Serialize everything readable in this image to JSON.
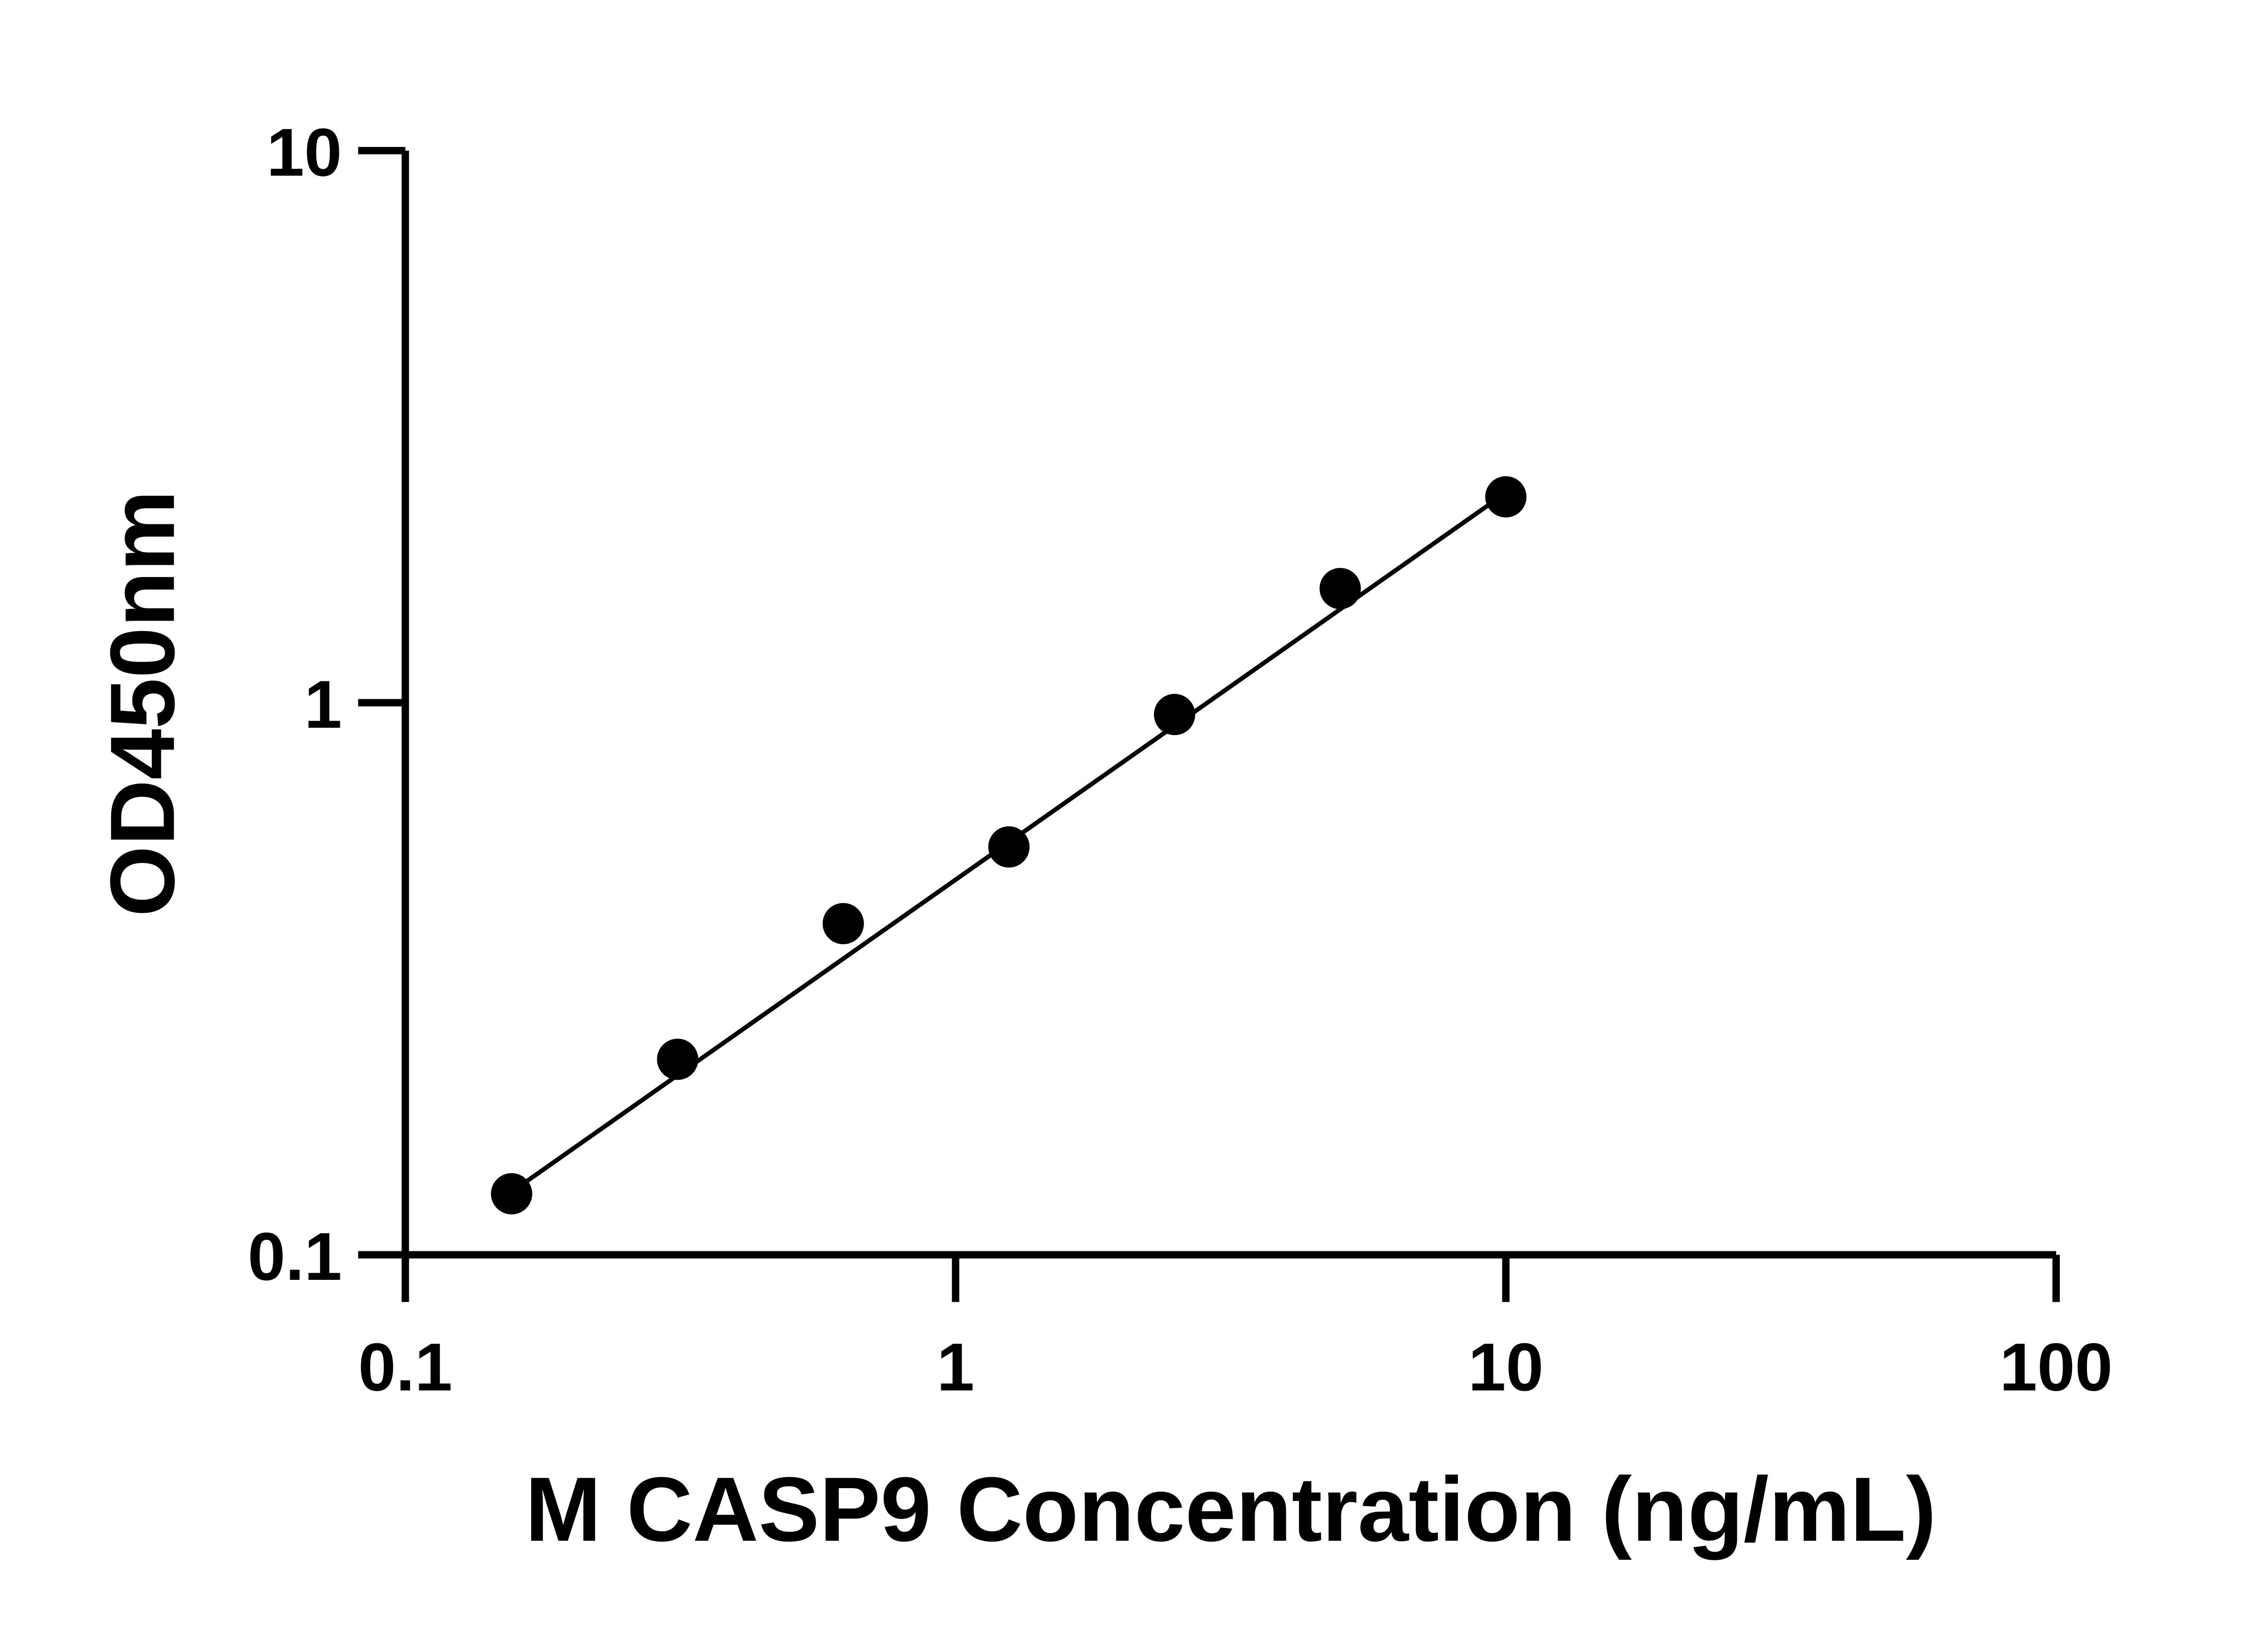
{
  "chart_data": {
    "type": "scatter",
    "title": "",
    "xlabel": "M CASP9 Concentration (ng/mL)",
    "ylabel": "OD450nm",
    "xscale": "log",
    "yscale": "log",
    "xlim": [
      0.1,
      100
    ],
    "ylim": [
      0.1,
      10
    ],
    "xticks": [
      "0.1",
      "1",
      "10",
      "100"
    ],
    "yticks": [
      "0.1",
      "1",
      "10"
    ],
    "grid": false,
    "legend": "none",
    "marker_color": "#000000",
    "series": [
      {
        "x": [
          0.156,
          0.3125,
          0.625,
          1.25,
          2.5,
          5,
          10
        ],
        "y": [
          0.129,
          0.226,
          0.398,
          0.548,
          0.952,
          1.61,
          2.36
        ]
      }
    ],
    "fit_line": {
      "x": [
        0.156,
        10
      ],
      "y": [
        0.13,
        2.4
      ]
    }
  }
}
